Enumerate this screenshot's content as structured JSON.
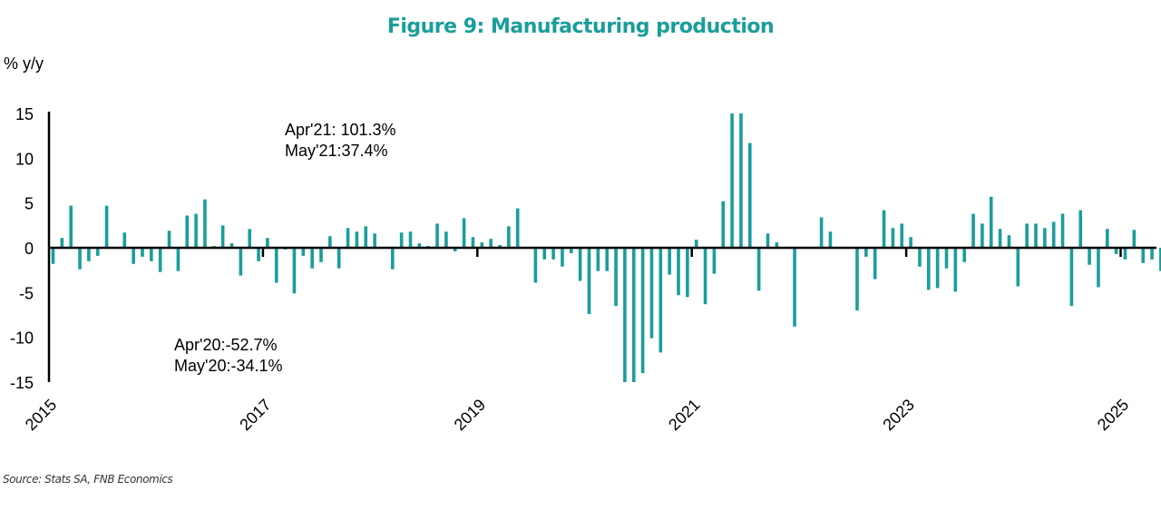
{
  "chart_data": {
    "type": "bar",
    "title": "Figure 9: Manufacturing production",
    "ylabel": "% y/y",
    "xlabel": "",
    "ylim": [
      -15,
      15
    ],
    "yticks": [
      15,
      10,
      5,
      0,
      -5,
      -10,
      -15
    ],
    "xtick_labels": [
      "2015",
      "2017",
      "2019",
      "2021",
      "2023",
      "2025"
    ],
    "start": "2015-01",
    "frequency": "monthly",
    "color": "#1a9e9a",
    "clipped_note": "Bars beyond ±15 are truncated at the axis limit",
    "annotations": [
      {
        "text": "Apr'21: 101.3%\nMay'21:37.4%",
        "position": "top-left"
      },
      {
        "text": "Apr'20:-52.7%\nMay'20:-34.1%",
        "position": "bottom-left"
      }
    ],
    "values": [
      -1.8,
      1.1,
      4.7,
      -2.4,
      -1.5,
      -0.9,
      4.7,
      0.1,
      1.7,
      -1.8,
      -1.0,
      -1.5,
      -2.7,
      1.9,
      -2.6,
      3.6,
      3.8,
      5.4,
      0.2,
      2.5,
      0.5,
      -3.1,
      2.1,
      -1.5,
      1.1,
      -3.9,
      -0.2,
      -5.1,
      -0.9,
      -2.3,
      -1.6,
      1.3,
      -2.3,
      2.2,
      1.8,
      2.4,
      1.6,
      0.1,
      -2.4,
      1.7,
      1.8,
      0.5,
      0.2,
      2.7,
      1.8,
      -0.4,
      3.3,
      1.2,
      0.6,
      1.0,
      0.3,
      2.4,
      4.4,
      0.0,
      -3.9,
      -1.3,
      -1.3,
      -2.1,
      -0.6,
      -3.7,
      -7.4,
      -2.6,
      -2.6,
      -6.5,
      -52.7,
      -34.1,
      -14.0,
      -10.1,
      -11.7,
      -3.0,
      -5.3,
      -5.5,
      0.9,
      -6.3,
      -2.9,
      5.2,
      101.3,
      37.4,
      11.7,
      -4.8,
      1.6,
      0.6,
      0.0,
      -8.8,
      0.0,
      0.0,
      3.4,
      1.8,
      0.0,
      0.0,
      -7.0,
      -1.0,
      -3.5,
      4.2,
      2.2,
      2.7,
      1.2,
      -2.1,
      -4.7,
      -4.5,
      -2.3,
      -4.9,
      -1.6,
      3.8,
      2.7,
      5.7,
      2.1,
      1.4,
      -4.3,
      2.7,
      2.7,
      2.2,
      2.9,
      3.8,
      -6.5,
      4.2,
      -1.9,
      -4.4,
      2.1,
      -0.7,
      -1.3,
      2.0,
      -1.7,
      -1.3,
      -2.6,
      -3.1,
      -1.1,
      -6.2
    ]
  }
}
